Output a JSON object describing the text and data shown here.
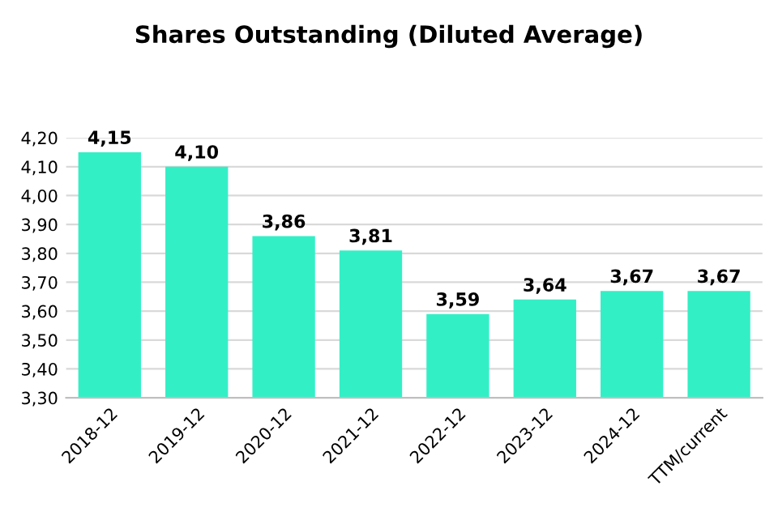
{
  "chart_data": {
    "type": "bar",
    "title": "Shares Outstanding (Diluted Average)",
    "categories": [
      "2018-12",
      "2019-12",
      "2020-12",
      "2021-12",
      "2022-12",
      "2023-12",
      "2024-12",
      "TTM/current"
    ],
    "values": [
      4.15,
      4.1,
      3.86,
      3.81,
      3.59,
      3.64,
      3.67,
      3.67
    ],
    "value_labels": [
      "4,15",
      "4,10",
      "3,86",
      "3,81",
      "3,59",
      "3,64",
      "3,67",
      "3,67"
    ],
    "color": "#33efc6",
    "ylim": [
      3.3,
      4.2
    ],
    "yticks": [
      {
        "value": 3.3,
        "label": "3,30"
      },
      {
        "value": 3.4,
        "label": "3,40"
      },
      {
        "value": 3.5,
        "label": "3,50"
      },
      {
        "value": 3.6,
        "label": "3,60"
      },
      {
        "value": 3.7,
        "label": "3,70"
      },
      {
        "value": 3.8,
        "label": "3,80"
      },
      {
        "value": 3.9,
        "label": "3,90"
      },
      {
        "value": 4.0,
        "label": "4,00"
      },
      {
        "value": 4.1,
        "label": "4,10"
      },
      {
        "value": 4.2,
        "label": "4,20"
      }
    ],
    "grid": "y",
    "legend": false
  }
}
